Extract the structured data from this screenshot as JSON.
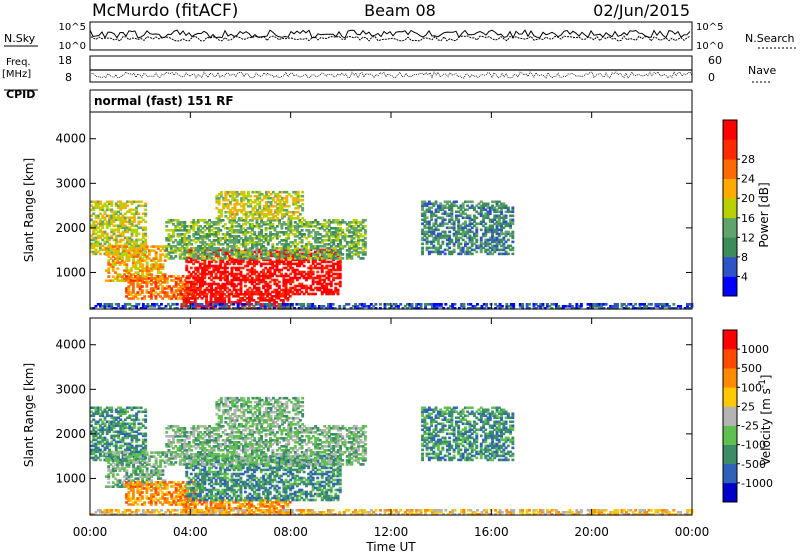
{
  "header": {
    "station": "McMurdo (fitACF)",
    "beam": "Beam 08",
    "date": "02/Jun/2015"
  },
  "status_panels": {
    "nsky_label": "N.Sky",
    "nsearch_label": "N.Search",
    "noise_ticks": [
      "10^5",
      "10^0"
    ],
    "freq_label_1": "Freq.",
    "freq_label_2": "[MHz]",
    "freq_ticks": [
      "18",
      "8"
    ],
    "nave_label": "Nave",
    "nave_ticks": [
      "60",
      "0"
    ],
    "cpid_label": "CPID",
    "cpid_text": "normal (fast) 151 RF"
  },
  "chart_data": [
    {
      "type": "heatmap",
      "title": "",
      "ylabel": "Slant Range [km]",
      "xlabel": "",
      "xlim": [
        0,
        24
      ],
      "ylim": [
        180,
        4600
      ],
      "yticks": [
        1000,
        2000,
        3000,
        4000
      ],
      "colorbar": {
        "label": "Power [dB]",
        "ticks": [
          "4",
          "8",
          "12",
          "16",
          "20",
          "24",
          "28"
        ],
        "colors": [
          "#0000ff",
          "#2e52c8",
          "#3c8c5a",
          "#5fa46a",
          "#b8d200",
          "#ffaa00",
          "#ff6a00",
          "#ff2a00",
          "#ff0000"
        ]
      },
      "echo_regions": [
        {
          "t": [
            0.0,
            2.2
          ],
          "r": [
            1400,
            2600
          ],
          "level": 4
        },
        {
          "t": [
            0.6,
            3.0
          ],
          "r": [
            800,
            1600
          ],
          "level": 5
        },
        {
          "t": [
            1.4,
            4.2
          ],
          "r": [
            400,
            900
          ],
          "level": 6
        },
        {
          "t": [
            3.6,
            8.0
          ],
          "r": [
            180,
            500
          ],
          "level": 8
        },
        {
          "t": [
            3.8,
            10.0
          ],
          "r": [
            500,
            1500
          ],
          "level": 8
        },
        {
          "t": [
            3.0,
            11.0
          ],
          "r": [
            1300,
            2200
          ],
          "level": 3
        },
        {
          "t": [
            5.0,
            8.5
          ],
          "r": [
            2200,
            2800
          ],
          "level": 4
        },
        {
          "t": [
            13.2,
            16.8
          ],
          "r": [
            1400,
            2600
          ],
          "level": 2
        },
        {
          "t": [
            0.0,
            24.0
          ],
          "r": [
            180,
            300
          ],
          "level": 1
        }
      ]
    },
    {
      "type": "heatmap",
      "title": "",
      "ylabel": "Slant Range [km]",
      "xlabel": "Time UT",
      "xlim": [
        0,
        24
      ],
      "ylim": [
        180,
        4600
      ],
      "xticks": [
        "00:00",
        "04:00",
        "08:00",
        "12:00",
        "16:00",
        "20:00",
        "00:00"
      ],
      "yticks": [
        1000,
        2000,
        3000,
        4000
      ],
      "colorbar": {
        "label": "Velocity [m s^-1]",
        "ticks": [
          "1000",
          "500",
          "100",
          "25",
          "-25",
          "-100",
          "-500",
          "-1000"
        ],
        "colors": [
          "#0000c8",
          "#2e62b8",
          "#3c8c6a",
          "#5fc050",
          "#b4b4b4",
          "#ffc800",
          "#ff8a00",
          "#ff4a00",
          "#ff0000"
        ]
      },
      "echo_regions": [
        {
          "t": [
            0.0,
            2.2
          ],
          "r": [
            1400,
            2600
          ],
          "level": 2
        },
        {
          "t": [
            0.6,
            3.0
          ],
          "r": [
            800,
            1600
          ],
          "level": 3
        },
        {
          "t": [
            1.4,
            4.2
          ],
          "r": [
            400,
            900
          ],
          "level": 6
        },
        {
          "t": [
            3.6,
            8.0
          ],
          "r": [
            180,
            500
          ],
          "level": 6
        },
        {
          "t": [
            3.8,
            10.0
          ],
          "r": [
            500,
            1500
          ],
          "level": 2
        },
        {
          "t": [
            3.0,
            11.0
          ],
          "r": [
            1300,
            2200
          ],
          "level": 3
        },
        {
          "t": [
            5.0,
            8.5
          ],
          "r": [
            2200,
            2800
          ],
          "level": 3
        },
        {
          "t": [
            13.2,
            16.8
          ],
          "r": [
            1400,
            2600
          ],
          "level": 2
        },
        {
          "t": [
            0.0,
            24.0
          ],
          "r": [
            180,
            300
          ],
          "level": 5
        }
      ]
    }
  ]
}
